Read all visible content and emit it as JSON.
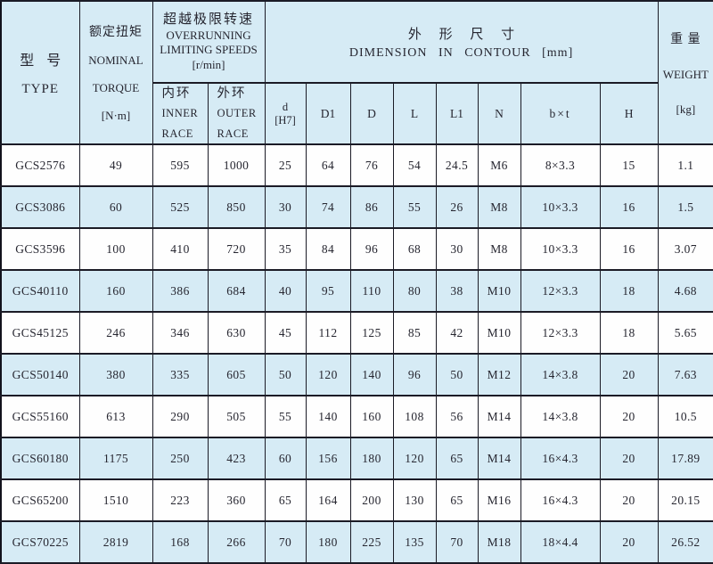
{
  "table": {
    "header": {
      "type": {
        "zh": "型 号",
        "en": "TYPE"
      },
      "nominal_torque": {
        "zh": "额定扭矩",
        "en_line1": "NOMINAL",
        "en_line2": "TORQUE",
        "unit": "[N·m]"
      },
      "overrunning_speeds": {
        "zh": "超越极限转速",
        "en_line1": "OVERRUNNING",
        "en_line2": "LIMITING SPEEDS",
        "unit": "[r/min]"
      },
      "inner_race": {
        "zh": "内环",
        "en_line1": "INNER",
        "en_line2": "RACE"
      },
      "outer_race": {
        "zh": "外环",
        "en_line1": "OUTER",
        "en_line2": "RACE"
      },
      "dimension": {
        "zh": "外 形 尺 寸",
        "en": "DIMENSION IN CONTOUR [mm]"
      },
      "dim_subcols": {
        "d_line1": "d",
        "d_line2": "[H7]",
        "d1": "D1",
        "d_big": "D",
        "l": "L",
        "l1": "L1",
        "n": "N",
        "b_x_t": "b×t",
        "h": "H"
      },
      "weight": {
        "zh": "重 量",
        "en": "WEIGHT",
        "unit": "[kg]"
      }
    },
    "column_keys": [
      "type",
      "nominal-torque",
      "inner-race",
      "outer-race",
      "d-h7",
      "d1",
      "d",
      "l",
      "l1",
      "n",
      "bxt",
      "h",
      "weight"
    ],
    "rows": [
      [
        "GCS2576",
        "49",
        "595",
        "1000",
        "25",
        "64",
        "76",
        "54",
        "24.5",
        "M6",
        "8×3.3",
        "15",
        "1.1"
      ],
      [
        "GCS3086",
        "60",
        "525",
        "850",
        "30",
        "74",
        "86",
        "55",
        "26",
        "M8",
        "10×3.3",
        "16",
        "1.5"
      ],
      [
        "GCS3596",
        "100",
        "410",
        "720",
        "35",
        "84",
        "96",
        "68",
        "30",
        "M8",
        "10×3.3",
        "16",
        "3.07"
      ],
      [
        "GCS40110",
        "160",
        "386",
        "684",
        "40",
        "95",
        "110",
        "80",
        "38",
        "M10",
        "12×3.3",
        "18",
        "4.68"
      ],
      [
        "GCS45125",
        "246",
        "346",
        "630",
        "45",
        "112",
        "125",
        "85",
        "42",
        "M10",
        "12×3.3",
        "18",
        "5.65"
      ],
      [
        "GCS50140",
        "380",
        "335",
        "605",
        "50",
        "120",
        "140",
        "96",
        "50",
        "M12",
        "14×3.8",
        "20",
        "7.63"
      ],
      [
        "GCS55160",
        "613",
        "290",
        "505",
        "55",
        "140",
        "160",
        "108",
        "56",
        "M14",
        "14×3.8",
        "20",
        "10.5"
      ],
      [
        "GCS60180",
        "1175",
        "250",
        "423",
        "60",
        "156",
        "180",
        "120",
        "65",
        "M14",
        "16×4.3",
        "20",
        "17.89"
      ],
      [
        "GCS65200",
        "1510",
        "223",
        "360",
        "65",
        "164",
        "200",
        "130",
        "65",
        "M16",
        "16×4.3",
        "20",
        "20.15"
      ],
      [
        "GCS70225",
        "2819",
        "168",
        "266",
        "70",
        "180",
        "225",
        "135",
        "70",
        "M18",
        "18×4.4",
        "20",
        "26.52"
      ]
    ],
    "colors": {
      "header_bg": "#d6ebf5",
      "stripe_bg": "#d6ebf5",
      "row_bg": "#fefefe",
      "border": "#1b1b26",
      "text": "#262630"
    }
  }
}
